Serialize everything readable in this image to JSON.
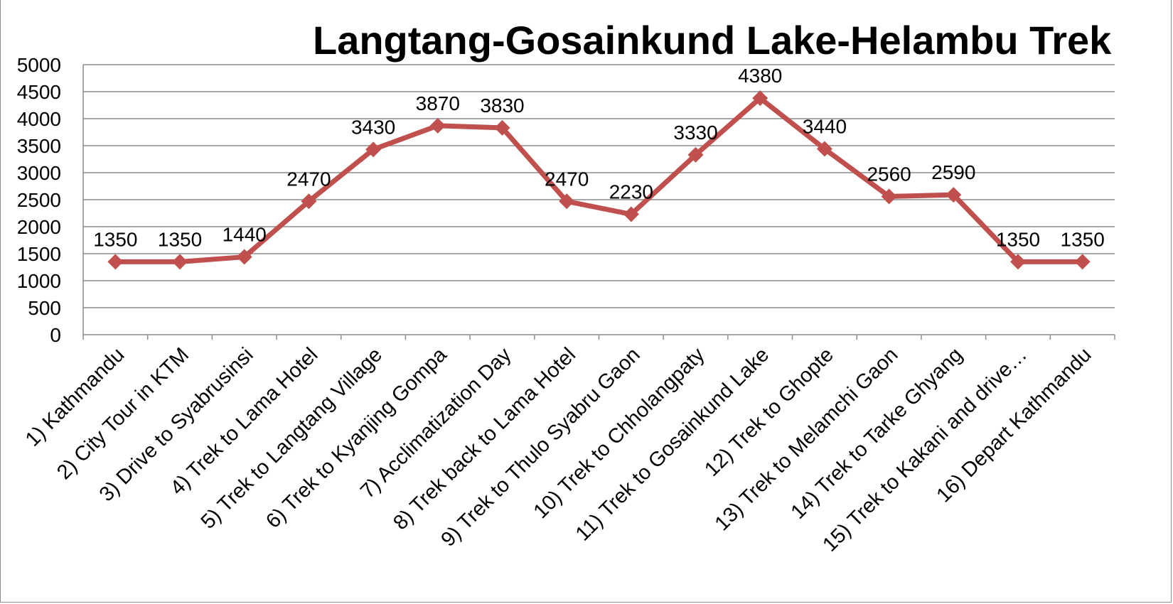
{
  "chart_data": {
    "type": "line",
    "title": "Langtang-Gosainkund Lake-Helambu Trek",
    "xlabel": "",
    "ylabel": "",
    "ylim": [
      0,
      5000
    ],
    "yticks": [
      0,
      500,
      1000,
      1500,
      2000,
      2500,
      3000,
      3500,
      4000,
      4500,
      5000
    ],
    "grid": true,
    "legend": "none",
    "categories": [
      "1) Kathmandu",
      "2) City Tour in KTM",
      "3) Drive to Syabrusinsi",
      "4) Trek to Lama Hotel",
      "5) Trek to Langtang Village",
      "6) Trek to Kyanjing Gompa",
      "7) Acclimatization Day",
      "8) Trek back to Lama Hotel",
      "9) Trek to Thulo Syabru Gaon",
      "10) Trek to Chholangpaty",
      "11) Trek to Gosainkund Lake",
      "12) Trek to Ghopte",
      "13) Trek to Melamchi Gaon",
      "14) Trek to Tarke Ghyang",
      "15) Trek to Kakani and drive…",
      "16) Depart Kathmandu"
    ],
    "series": [
      {
        "values": [
          1350,
          1350,
          1440,
          2470,
          3430,
          3870,
          3830,
          2470,
          2230,
          3330,
          4380,
          3440,
          2560,
          2590,
          1350,
          1350
        ],
        "color": "#c0504d",
        "marker": "diamond",
        "data_labels": true
      }
    ]
  }
}
